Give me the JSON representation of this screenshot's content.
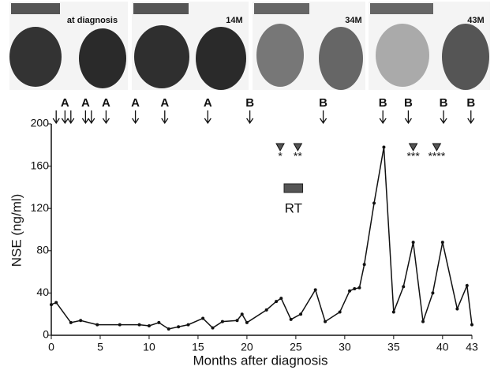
{
  "chart_data": {
    "type": "line",
    "x_label": "Months after diagnosis",
    "y_label": "NSE (ng/ml)",
    "xlim": [
      0,
      43
    ],
    "ylim": [
      0,
      200
    ],
    "xticks": [
      0,
      5,
      10,
      15,
      20,
      25,
      30,
      35,
      40,
      43
    ],
    "yticks": [
      0,
      40,
      80,
      120,
      160,
      200
    ],
    "color": "#111111",
    "x": [
      0,
      0.5,
      2,
      3,
      4.7,
      7,
      9,
      10,
      11,
      12,
      13,
      14,
      15.5,
      16.5,
      17.5,
      19,
      19.5,
      20,
      22,
      23,
      23.5,
      24.5,
      25.5,
      27,
      28,
      29.5,
      30.5,
      31,
      31.5,
      32,
      33,
      34,
      35,
      36,
      37,
      38,
      39,
      40,
      41.5,
      42.5,
      43
    ],
    "values": [
      29,
      31,
      12,
      14,
      10,
      10,
      10,
      9,
      12,
      6,
      8,
      10,
      16,
      7,
      13,
      14,
      20,
      12,
      24,
      32,
      35,
      15,
      20,
      43,
      13,
      22,
      42,
      44,
      45,
      67,
      125,
      178,
      22,
      46,
      88,
      13,
      40,
      88,
      25,
      47,
      10
    ],
    "ct_panels": [
      "at diagnosis",
      "14M",
      "34M",
      "43M"
    ],
    "treatment_arrows": {
      "x": [
        0.5,
        1.4,
        2.0,
        3.5,
        4.1,
        5.6,
        8.6,
        11.6,
        16,
        20.3,
        27.8,
        33.9,
        36.5,
        40.1,
        42.9
      ],
      "labels": [
        null,
        "A",
        null,
        "A",
        null,
        "A",
        "A",
        "A",
        "A",
        "B",
        "B",
        "B",
        "B",
        "B",
        "B"
      ]
    },
    "markers": {
      "x": [
        23.4,
        25.2,
        37,
        39.4
      ],
      "labels": [
        "*",
        "**",
        "***",
        "****"
      ]
    },
    "rt_bar": {
      "label": "RT",
      "start": 23.8,
      "end": 25.7
    }
  }
}
